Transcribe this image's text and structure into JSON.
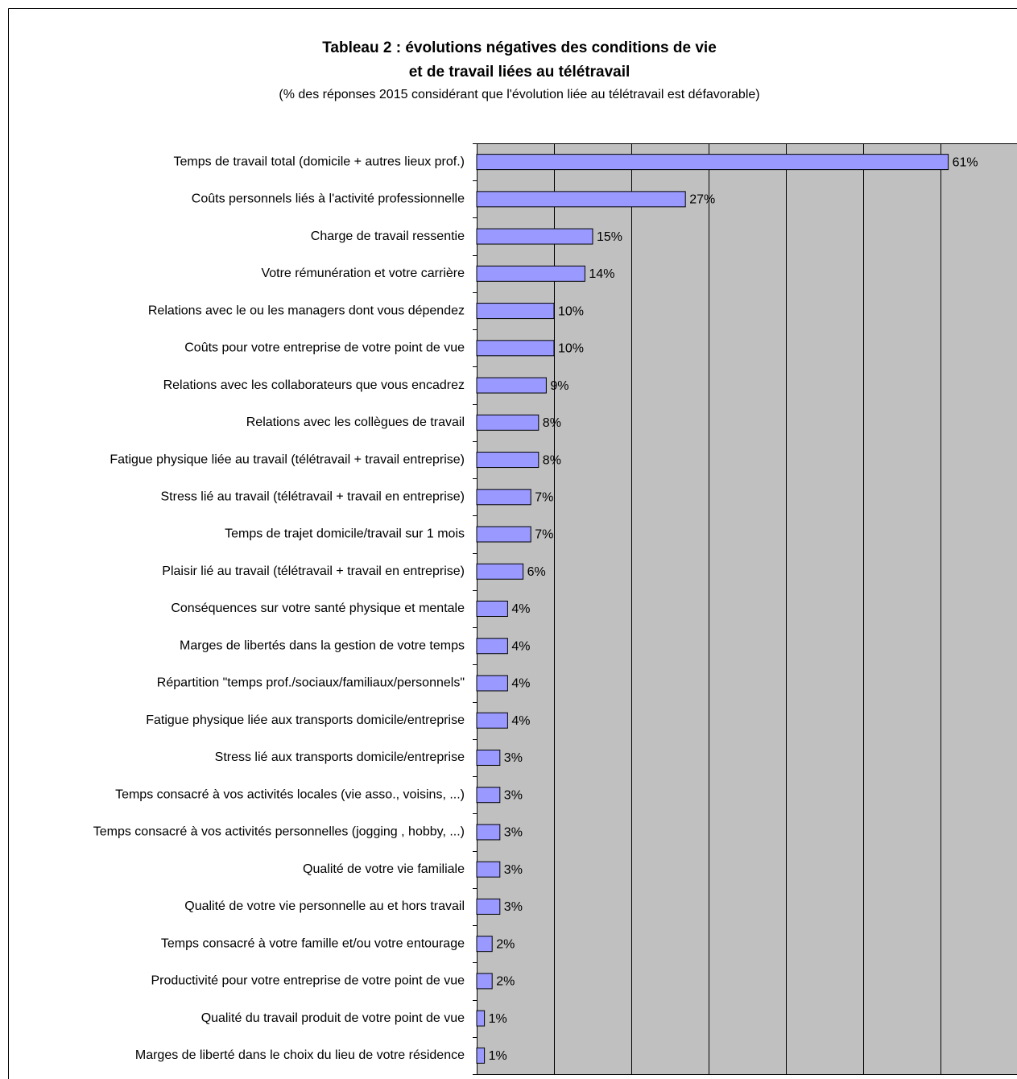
{
  "chart_data": {
    "type": "bar",
    "title": [
      "Tableau 2 : évolutions négatives des conditions de vie",
      "et de travail liées au télétravail"
    ],
    "subtitle": "(% des réponses 2015 considérant que l'évolution liée au télétravail est défavorable)",
    "categories": [
      "Temps de travail total (domicile + autres lieux prof.)",
      "Coûts personnels liés à l'activité professionnelle",
      "Charge de travail ressentie",
      "Votre rémunération et votre carrière",
      "Relations avec le ou les managers dont vous dépendez",
      "Coûts pour votre entreprise de votre point de vue",
      "Relations avec les collaborateurs que vous encadrez",
      "Relations avec les collègues de travail",
      "Fatigue physique liée au travail (télétravail + travail entreprise)",
      "Stress lié au travail (télétravail + travail en entreprise)",
      "Temps de trajet domicile/travail sur 1 mois",
      "Plaisir lié au travail (télétravail + travail en entreprise)",
      "Conséquences sur votre santé physique et mentale",
      "Marges de libertés dans la gestion de votre temps",
      "Répartition \"temps prof./sociaux/familiaux/personnels\"",
      "Fatigue physique liée aux transports domicile/entreprise",
      "Stress lié aux transports domicile/entreprise",
      "Temps consacré à vos activités locales (vie asso., voisins, ...)",
      "Temps consacré à vos activités personnelles (jogging , hobby, ...)",
      "Qualité de votre vie familiale",
      "Qualité de votre vie personnelle au et hors travail",
      "Temps consacré à votre famille et/ou votre entourage",
      "Productivité pour votre entreprise de votre point de vue",
      "Qualité du travail produit de votre point de vue",
      "Marges de liberté dans le choix du lieu de votre résidence"
    ],
    "values": [
      61,
      27,
      15,
      14,
      10,
      10,
      9,
      8,
      8,
      7,
      7,
      6,
      4,
      4,
      4,
      4,
      3,
      3,
      3,
      3,
      3,
      2,
      2,
      1,
      1
    ],
    "value_labels": [
      "61%",
      "27%",
      "15%",
      "14%",
      "10%",
      "10%",
      "9%",
      "8%",
      "8%",
      "7%",
      "7%",
      "6%",
      "4%",
      "4%",
      "4%",
      "4%",
      "3%",
      "3%",
      "3%",
      "3%",
      "3%",
      "2%",
      "2%",
      "1%",
      "1%"
    ],
    "color": "#9999ff",
    "xlim": [
      0,
      70
    ],
    "xticks": [
      0,
      10,
      20,
      30,
      40,
      50,
      60,
      70
    ],
    "grid": true
  }
}
